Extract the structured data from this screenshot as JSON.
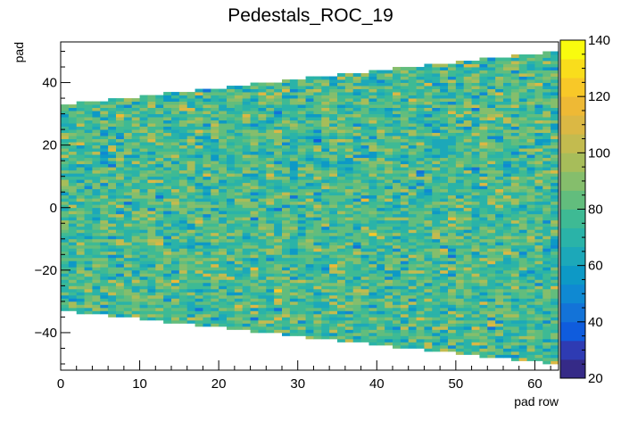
{
  "chart_data": {
    "type": "heatmap",
    "title": "Pedestals_ROC_19",
    "xlabel": "pad row",
    "ylabel": "pad",
    "xlim": [
      0,
      63
    ],
    "ylim": [
      -52,
      53
    ],
    "x_ticks": [
      0,
      10,
      20,
      30,
      40,
      50,
      60
    ],
    "y_ticks": [
      -40,
      -20,
      0,
      20,
      40
    ],
    "x_tick_labels": [
      "0",
      "10",
      "20",
      "30",
      "40",
      "50",
      "60"
    ],
    "y_tick_labels": [
      "−40",
      "−20",
      "0",
      "20",
      "40"
    ],
    "zlim": [
      20,
      140
    ],
    "z_ticks": [
      20,
      40,
      60,
      80,
      100,
      120,
      140
    ],
    "z_tick_labels": [
      "20",
      "40",
      "60",
      "80",
      "100",
      "120",
      "140"
    ],
    "rows": 63,
    "pad_half_width_first": 33,
    "pad_half_width_last": 50,
    "value_mean": 78,
    "value_spread": 12,
    "grid": false,
    "legend": "colorbar-right",
    "palette": [
      "#352a87",
      "#2e3bb3",
      "#0f5cdd",
      "#1373d8",
      "#0f89d2",
      "#0d99c6",
      "#1ca8b9",
      "#2ab3a8",
      "#3eba94",
      "#62bd7d",
      "#85be6c",
      "#a7bd5a",
      "#c3bb4f",
      "#dbb844",
      "#eeb935",
      "#f8c828",
      "#f9dd1c",
      "#f9fb0e"
    ]
  }
}
